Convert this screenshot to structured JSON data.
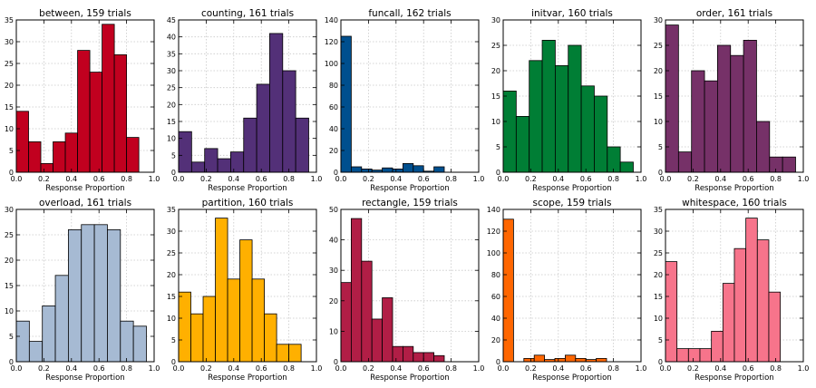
{
  "chart_data": [
    {
      "type": "bar",
      "title": "between, 159 trials",
      "xlabel": "Response Proportion",
      "ylabel": "",
      "color": "#c1001f",
      "bins": [
        0,
        0.1,
        0.2,
        0.3,
        0.4,
        0.5,
        0.6,
        0.7,
        0.8,
        0.9
      ],
      "values": [
        14,
        7,
        2,
        7,
        9,
        28,
        23,
        34,
        27,
        8
      ],
      "xlim": [
        0,
        1.0
      ],
      "ylim": [
        0,
        35
      ],
      "bin_width": 0.0889,
      "xticks": [
        "0.0",
        "0.2",
        "0.4",
        "0.6",
        "0.8",
        "1.0"
      ],
      "yticks": [
        "0",
        "5",
        "10",
        "15",
        "20",
        "25",
        "30",
        "35"
      ],
      "grid": true
    },
    {
      "type": "bar",
      "title": "counting, 161 trials",
      "xlabel": "Response Proportion",
      "ylabel": "",
      "color": "#533078",
      "bins": [
        0,
        0.1,
        0.2,
        0.3,
        0.4,
        0.5,
        0.6,
        0.7,
        0.8,
        0.9
      ],
      "values": [
        12,
        3,
        7,
        4,
        6,
        16,
        26,
        41,
        30,
        16
      ],
      "xlim": [
        0,
        1.0
      ],
      "ylim": [
        0,
        45
      ],
      "bin_width": 0.0944,
      "xticks": [
        "0.0",
        "0.2",
        "0.4",
        "0.6",
        "0.8",
        "1.0"
      ],
      "yticks": [
        "0",
        "5",
        "10",
        "15",
        "20",
        "25",
        "30",
        "35",
        "40",
        "45"
      ],
      "grid": true
    },
    {
      "type": "bar",
      "title": "funcall, 162 trials",
      "xlabel": "Response Proportion",
      "ylabel": "",
      "color": "#004f8e",
      "bins": [
        0,
        0.1,
        0.2,
        0.3,
        0.4,
        0.5,
        0.6,
        0.7,
        0.8,
        0.9
      ],
      "values": [
        125,
        5,
        3,
        2,
        4,
        3,
        8,
        6,
        1,
        5
      ],
      "xlim": [
        0,
        1.0
      ],
      "ylim": [
        0,
        140
      ],
      "bin_width": 0.075,
      "xticks": [
        "0.0",
        "0.2",
        "0.4",
        "0.6",
        "0.8",
        "1.0"
      ],
      "yticks": [
        "0",
        "20",
        "40",
        "60",
        "80",
        "100",
        "120",
        "140"
      ],
      "grid": true
    },
    {
      "type": "bar",
      "title": "initvar, 160 trials",
      "xlabel": "Response Proportion",
      "ylabel": "",
      "color": "#007e35",
      "bins": [
        0,
        0.1,
        0.2,
        0.3,
        0.4,
        0.5,
        0.6,
        0.7,
        0.8,
        0.9
      ],
      "values": [
        16,
        11,
        22,
        26,
        21,
        25,
        17,
        15,
        5,
        2
      ],
      "xlim": [
        0,
        1.0
      ],
      "ylim": [
        0,
        30
      ],
      "bin_width": 0.0944,
      "xticks": [
        "0.0",
        "0.2",
        "0.4",
        "0.6",
        "0.8",
        "1.0"
      ],
      "yticks": [
        "0",
        "5",
        "10",
        "15",
        "20",
        "25",
        "30"
      ],
      "grid": true
    },
    {
      "type": "bar",
      "title": "order, 161 trials",
      "xlabel": "Response Proportion",
      "ylabel": "",
      "color": "#763168",
      "bins": [
        0,
        0.1,
        0.2,
        0.3,
        0.4,
        0.5,
        0.6,
        0.7,
        0.8,
        0.9
      ],
      "values": [
        29,
        4,
        20,
        18,
        25,
        23,
        26,
        10,
        3,
        3
      ],
      "xlim": [
        0,
        1.0
      ],
      "ylim": [
        0,
        30
      ],
      "bin_width": 0.0944,
      "xticks": [
        "0.0",
        "0.2",
        "0.4",
        "0.6",
        "0.8",
        "1.0"
      ],
      "yticks": [
        "0",
        "5",
        "10",
        "15",
        "20",
        "25",
        "30"
      ],
      "grid": true
    },
    {
      "type": "bar",
      "title": "overload, 161 trials",
      "xlabel": "Response Proportion",
      "ylabel": "",
      "color": "#a6bad3",
      "bins": [
        0,
        0.1,
        0.2,
        0.3,
        0.4,
        0.5,
        0.6,
        0.7,
        0.8,
        0.9
      ],
      "values": [
        8,
        4,
        11,
        17,
        26,
        27,
        27,
        26,
        8,
        7
      ],
      "xlim": [
        0,
        1.0
      ],
      "ylim": [
        0,
        30
      ],
      "bin_width": 0.0944,
      "xticks": [
        "0.0",
        "0.2",
        "0.4",
        "0.6",
        "0.8",
        "1.0"
      ],
      "yticks": [
        "0",
        "5",
        "10",
        "15",
        "20",
        "25",
        "30"
      ],
      "grid": true
    },
    {
      "type": "bar",
      "title": "partition, 160 trials",
      "xlabel": "Response Proportion",
      "ylabel": "",
      "color": "#ffb000",
      "bins": [
        0,
        0.1,
        0.2,
        0.3,
        0.4,
        0.5,
        0.6,
        0.7,
        0.8,
        0.9
      ],
      "values": [
        16,
        11,
        15,
        33,
        19,
        28,
        19,
        11,
        4,
        4
      ],
      "xlim": [
        0,
        1.0
      ],
      "ylim": [
        0,
        35
      ],
      "bin_width": 0.0889,
      "xticks": [
        "0.0",
        "0.2",
        "0.4",
        "0.6",
        "0.8",
        "1.0"
      ],
      "yticks": [
        "0",
        "5",
        "10",
        "15",
        "20",
        "25",
        "30",
        "35"
      ],
      "grid": true
    },
    {
      "type": "bar",
      "title": "rectangle, 159 trials",
      "xlabel": "Response Proportion",
      "ylabel": "",
      "color": "#b11e46",
      "bins": [
        0,
        0.1,
        0.2,
        0.3,
        0.4,
        0.5,
        0.6,
        0.7,
        0.8,
        0.9
      ],
      "values": [
        26,
        47,
        33,
        14,
        21,
        5,
        5,
        3,
        3,
        2
      ],
      "xlim": [
        0,
        1.0
      ],
      "ylim": [
        0,
        50
      ],
      "bin_width": 0.075,
      "xticks": [
        "0.0",
        "0.2",
        "0.4",
        "0.6",
        "0.8",
        "1.0"
      ],
      "yticks": [
        "0",
        "10",
        "20",
        "30",
        "40",
        "50"
      ],
      "grid": true
    },
    {
      "type": "bar",
      "title": "scope, 159 trials",
      "xlabel": "Response Proportion",
      "ylabel": "",
      "color": "#ff6600",
      "bins": [
        0,
        0.1,
        0.2,
        0.3,
        0.4,
        0.5,
        0.6,
        0.7,
        0.8,
        0.9
      ],
      "values": [
        131,
        0,
        3,
        6,
        2,
        3,
        6,
        3,
        2,
        3
      ],
      "xlim": [
        0,
        1.0
      ],
      "ylim": [
        0,
        140
      ],
      "bin_width": 0.075,
      "xticks": [
        "0.0",
        "0.2",
        "0.4",
        "0.6",
        "0.8",
        "1.0"
      ],
      "yticks": [
        "0",
        "20",
        "40",
        "60",
        "80",
        "100",
        "120",
        "140"
      ],
      "grid": true
    },
    {
      "type": "bar",
      "title": "whitespace, 160 trials",
      "xlabel": "Response Proportion",
      "ylabel": "",
      "color": "#f7748b",
      "bins": [
        0,
        0.1,
        0.2,
        0.3,
        0.4,
        0.5,
        0.6,
        0.7,
        0.8,
        0.9
      ],
      "values": [
        23,
        3,
        3,
        3,
        7,
        18,
        26,
        33,
        28,
        16
      ],
      "xlim": [
        0,
        1.0
      ],
      "ylim": [
        0,
        35
      ],
      "bin_width": 0.0833,
      "xticks": [
        "0.0",
        "0.2",
        "0.4",
        "0.6",
        "0.8",
        "1.0"
      ],
      "yticks": [
        "0",
        "5",
        "10",
        "15",
        "20",
        "25",
        "30",
        "35"
      ],
      "grid": true
    }
  ]
}
